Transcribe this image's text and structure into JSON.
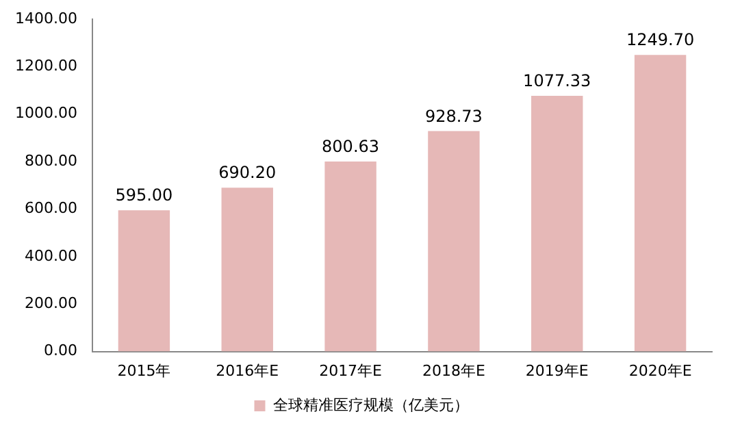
{
  "chart_data": {
    "type": "bar",
    "categories": [
      "2015年",
      "2016年E",
      "2017年E",
      "2018年E",
      "2019年E",
      "2020年E"
    ],
    "series": [
      {
        "name": "全球精准医疗规模（亿美元）",
        "color": "#e6b8b7",
        "values": [
          595.0,
          690.2,
          800.63,
          928.73,
          1077.33,
          1249.7
        ],
        "value_labels": [
          "595.00",
          "690.20",
          "800.63",
          "928.73",
          "1077.33",
          "1249.70"
        ]
      }
    ],
    "ylim": [
      0,
      1400
    ],
    "yticks": [
      {
        "value": 0,
        "label": "0.00"
      },
      {
        "value": 200,
        "label": "200.00"
      },
      {
        "value": 400,
        "label": "400.00"
      },
      {
        "value": 600,
        "label": "600.00"
      },
      {
        "value": 800,
        "label": "800.00"
      },
      {
        "value": 1000,
        "label": "1000.00"
      },
      {
        "value": 1200,
        "label": "1200.00"
      },
      {
        "value": 1400,
        "label": "1400.00"
      }
    ],
    "grid": false,
    "legend": "bottom"
  }
}
